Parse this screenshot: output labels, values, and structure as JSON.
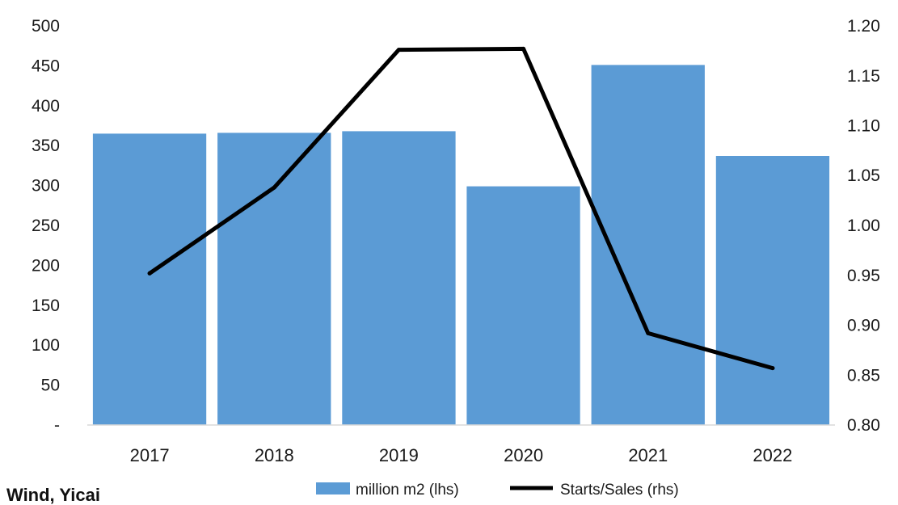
{
  "source": "Wind, Yicai",
  "chart_data": {
    "type": "bar",
    "categories": [
      "2017",
      "2018",
      "2019",
      "2020",
      "2021",
      "2022"
    ],
    "series": [
      {
        "name": "million m2 (lhs)",
        "type": "bar",
        "axis": "left",
        "color": "#5b9bd5",
        "values": [
          365,
          366,
          368,
          299,
          451,
          337
        ]
      },
      {
        "name": "Starts/Sales (rhs)",
        "type": "line",
        "axis": "right",
        "color": "#000000",
        "values": [
          0.952,
          1.038,
          1.176,
          1.177,
          0.892,
          0.857
        ]
      }
    ],
    "y_left": {
      "range": [
        0,
        500
      ],
      "ticks": [
        0,
        50,
        100,
        150,
        200,
        250,
        300,
        350,
        400,
        450,
        500
      ],
      "tick_labels": [
        "-",
        "50",
        "100",
        "150",
        "200",
        "250",
        "300",
        "350",
        "400",
        "450",
        "500"
      ]
    },
    "y_right": {
      "range": [
        0.8,
        1.2
      ],
      "ticks": [
        0.8,
        0.85,
        0.9,
        0.95,
        1.0,
        1.05,
        1.1,
        1.15,
        1.2
      ],
      "tick_labels": [
        "0.80",
        "0.85",
        "0.90",
        "0.95",
        "1.00",
        "1.05",
        "1.10",
        "1.15",
        "1.20"
      ]
    },
    "legend": {
      "position": "bottom",
      "entries": [
        "million m2 (lhs)",
        "Starts/Sales (rhs)"
      ]
    },
    "grid": false
  }
}
